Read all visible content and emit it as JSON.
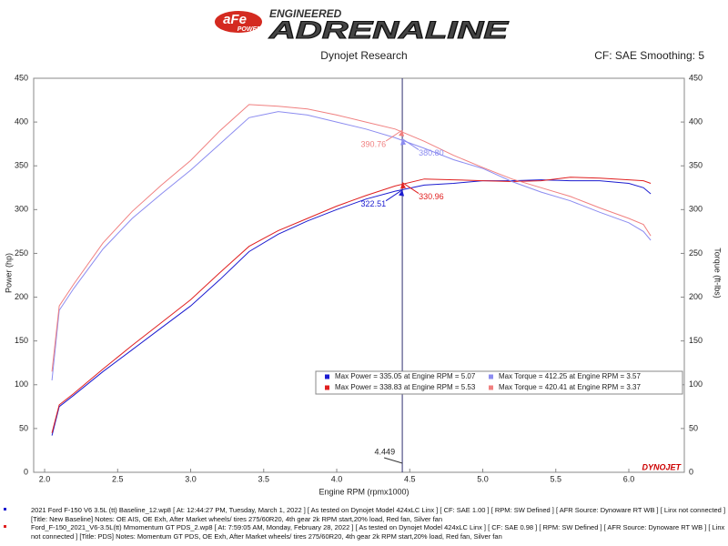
{
  "header": {
    "logo": "aFe",
    "logo_sub": "POWER",
    "tagline": "ENGINEERED",
    "brand": "ADRENALINE"
  },
  "chart_data": {
    "type": "line",
    "subtitle": "Dynojet Research",
    "settings_note": "CF: SAE Smoothing: 5",
    "x_label": "Engine RPM (rpmx1000)",
    "y_label": "Power (hp)",
    "y2_label": "Torque (ft-lbs)",
    "watermark": "DYNOJET",
    "legend": "lower right",
    "grid": false,
    "xlim": [
      1.925,
      6.38
    ],
    "xticks": [
      {
        "value": 2,
        "label": "2.0"
      },
      2.5,
      {
        "value": 3,
        "label": "3.0"
      },
      3.5,
      {
        "value": 4,
        "label": "4.0"
      },
      4.5,
      {
        "value": 5,
        "label": "5.0"
      },
      5.5,
      {
        "value": 6,
        "label": "6.0"
      }
    ],
    "ylim": [
      0,
      450
    ],
    "yticks": [
      0,
      50,
      100,
      150,
      200,
      250,
      300,
      350,
      400,
      450
    ],
    "y2lim": [
      0,
      450
    ],
    "y2ticks": [
      0,
      50,
      100,
      150,
      200,
      250,
      300,
      350,
      400,
      450
    ],
    "x": [
      2.05,
      2.1,
      2.2,
      2.4,
      2.6,
      2.8,
      3.0,
      3.2,
      3.4,
      3.6,
      3.8,
      4.0,
      4.2,
      4.4,
      4.6,
      4.8,
      5.0,
      5.2,
      5.4,
      5.6,
      5.8,
      6.0,
      6.1,
      6.15
    ],
    "series": [
      {
        "name": "Max Power = 335.05 at Engine RPM = 5.07",
        "color": "#1c1cd0",
        "values": [
          42,
          75,
          88,
          115,
          140,
          165,
          190,
          220,
          252,
          272,
          287,
          300,
          312,
          321,
          328,
          330,
          333,
          333,
          334,
          333,
          333,
          330,
          325,
          318
        ]
      },
      {
        "name": "Max Power = 338.83 at Engine RPM = 5.53",
        "color": "#e02020",
        "values": [
          45,
          77,
          90,
          118,
          145,
          171,
          197,
          228,
          258,
          276,
          290,
          304,
          316,
          327,
          335,
          334,
          333,
          332,
          333,
          337,
          336,
          334,
          333,
          330
        ]
      },
      {
        "name": "Max Torque = 412.25 at Engine RPM = 3.57",
        "color": "#8c8cf0",
        "axis": "y2",
        "values": [
          105,
          185,
          210,
          255,
          290,
          318,
          345,
          375,
          405,
          412,
          408,
          400,
          392,
          382,
          370,
          357,
          347,
          332,
          320,
          310,
          297,
          285,
          275,
          265
        ]
      },
      {
        "name": "Max Torque = 420.41 at Engine RPM = 3.37",
        "color": "#f08080",
        "axis": "y2",
        "values": [
          115,
          190,
          215,
          262,
          298,
          328,
          356,
          390,
          420,
          418,
          415,
          408,
          400,
          392,
          378,
          362,
          348,
          335,
          325,
          315,
          302,
          290,
          283,
          270
        ]
      }
    ],
    "cursor": {
      "x": 4.449,
      "label": "4.449",
      "readings": [
        322.51,
        330.96,
        {
          "value": 380.8,
          "label": "380.80"
        },
        390.76
      ]
    }
  },
  "runs": [
    "2021 Ford F-150 V6 3.5L (tt) Baseline_12.wp8 [ At: 12:44:27 PM, Tuesday, March 1, 2022 ] [ As tested on Dynojet Model 424xLC Linx ] [ CF: SAE 1.00 ] [ RPM: SW Defined ] [ AFR Source: Dynoware RT WB ] [ Linx not connected ] [Title: New Baseline]  Notes: OE AIS, OE Exh, After Market wheels/ tires 275/60R20, 4th gear 2k RPM start,20% load, Red fan, Silver fan",
    "Ford_F-150_2021_V6-3.5L(tt) Mmomentum GT PDS_2.wp8 [ At: 7:59:05 AM, Monday, February 28, 2022 ] [ As tested on Dynojet Model 424xLC Linx ] [ CF: SAE 0.98 ] [ RPM: SW Defined ] [ AFR Source: Dynoware RT WB ] [ Linx not connected ] [Title: PDS]  Notes: Momentum GT  PDS, OE Exh, After Market wheels/ tires 275/60R20, 4th gear 2k RPM start,20% load, Red fan, Silver fan"
  ]
}
